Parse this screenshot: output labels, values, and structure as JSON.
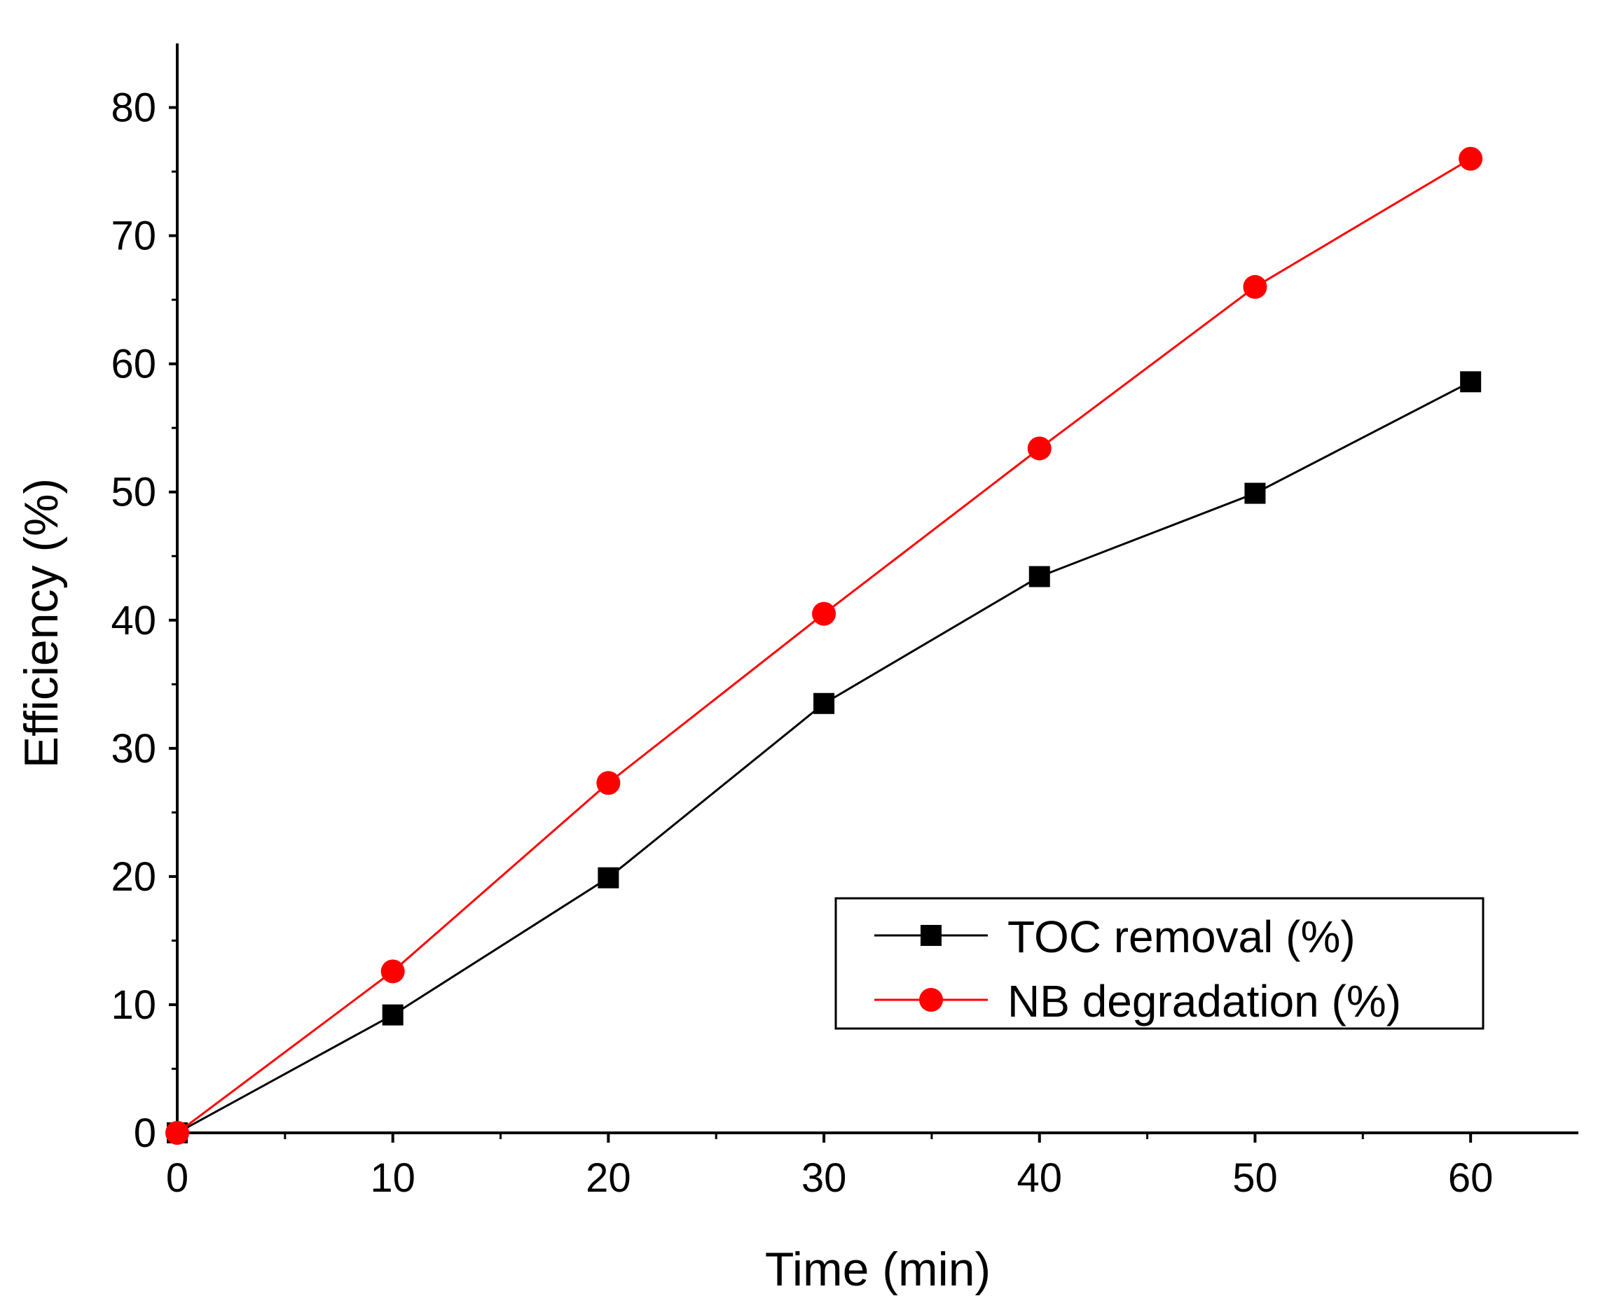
{
  "chart_data": {
    "type": "line",
    "title": "",
    "xlabel": "Time (min)",
    "ylabel": "Efficiency (%)",
    "xlim": [
      0,
      65
    ],
    "ylim": [
      0,
      85
    ],
    "x": [
      0,
      10,
      20,
      30,
      40,
      50,
      60
    ],
    "xticks": [
      0,
      10,
      20,
      30,
      40,
      50,
      60
    ],
    "xtick_labels": [
      "0",
      "10",
      "20",
      "30",
      "40",
      "50",
      "60"
    ],
    "yticks": [
      0,
      10,
      20,
      30,
      40,
      50,
      60,
      70,
      80
    ],
    "ytick_labels": [
      "0",
      "10",
      "20",
      "30",
      "40",
      "50",
      "60",
      "70",
      "80"
    ],
    "grid": false,
    "legend_position": "bottom-right",
    "series": [
      {
        "name": "TOC removal (%)",
        "color": "#000000",
        "marker": "square",
        "values": [
          0,
          9.2,
          19.9,
          33.5,
          43.4,
          49.9,
          58.6
        ]
      },
      {
        "name": "NB degradation (%)",
        "color": "#ff0000",
        "marker": "circle",
        "values": [
          0,
          12.6,
          27.3,
          40.5,
          53.4,
          66.0,
          76.0
        ]
      }
    ]
  }
}
